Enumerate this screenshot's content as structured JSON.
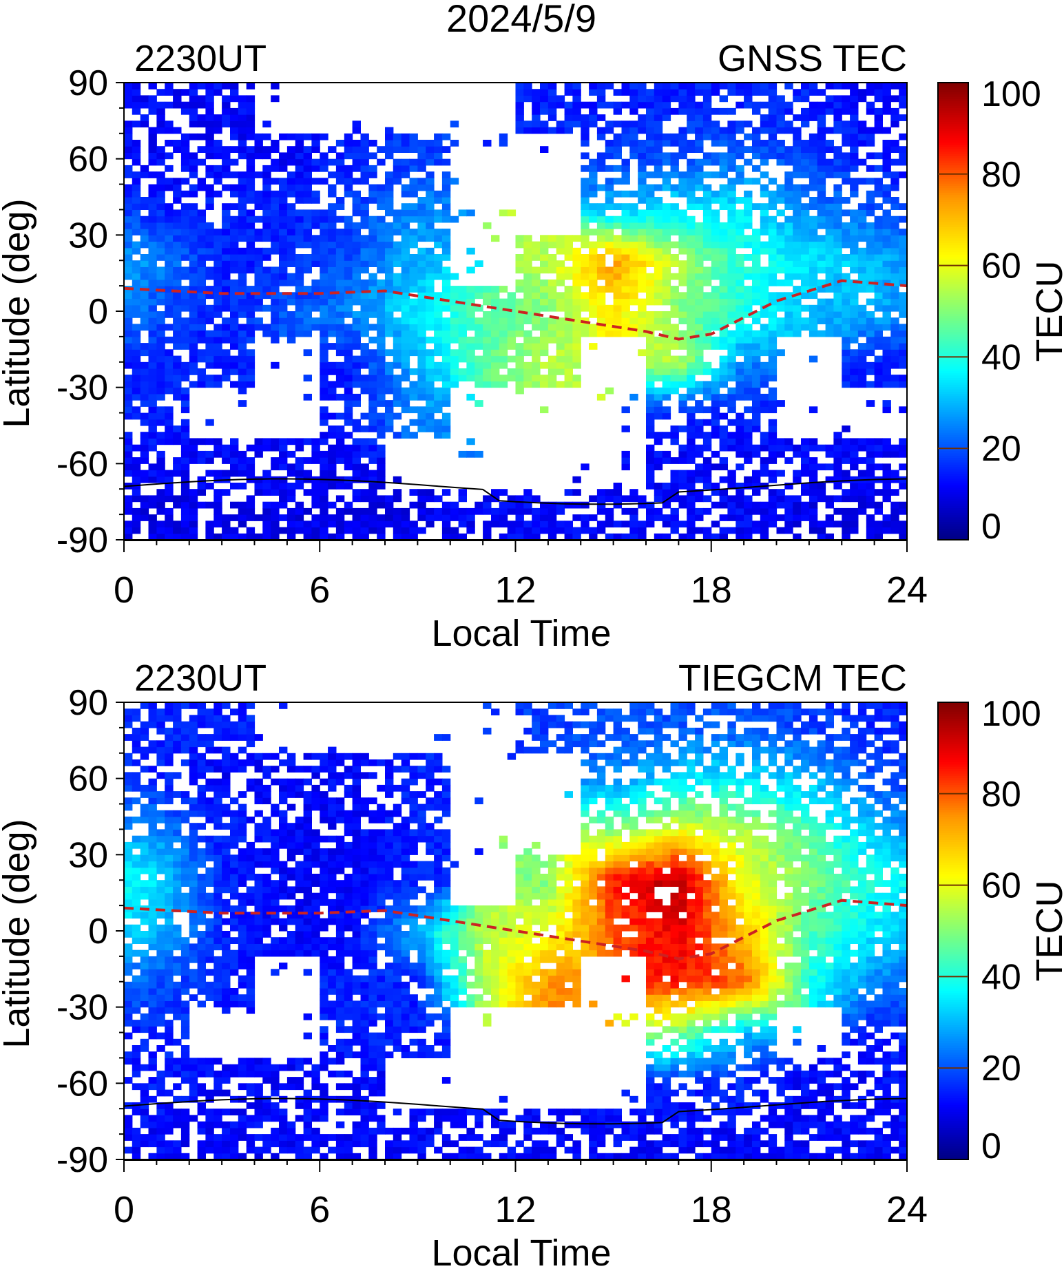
{
  "chart_data": {
    "type": "heatmap",
    "title": "2024/5/9",
    "colormap": "jet",
    "colorbar": {
      "label": "TECU",
      "range": [
        0,
        100
      ],
      "ticks": [
        "0",
        "20",
        "40",
        "60",
        "80",
        "100"
      ]
    },
    "xlabel": "Local Time",
    "ylabel": "Latitude (deg)",
    "xlim": [
      0,
      24
    ],
    "ylim": [
      -90,
      90
    ],
    "xticks": [
      "0",
      "6",
      "12",
      "18",
      "24"
    ],
    "yticks": [
      "90",
      "60",
      "30",
      "0",
      "-30",
      "-60",
      "-90"
    ],
    "grid_lt_centers": [
      1,
      3,
      5,
      7,
      9,
      11,
      13,
      15,
      17,
      19,
      21,
      23
    ],
    "grid_lat_centers": [
      80,
      60,
      40,
      20,
      0,
      -20,
      -40,
      -60,
      -80
    ],
    "dip_equator": {
      "lt": [
        0,
        3,
        6,
        8,
        10,
        12,
        14,
        16,
        17,
        18,
        20,
        22,
        24
      ],
      "lat": [
        9,
        7,
        7,
        8,
        4,
        0,
        -4,
        -8,
        -11,
        -9,
        4,
        12,
        10
      ],
      "color": "#cc2222"
    },
    "panels": [
      {
        "time_label": "2230UT",
        "name": "GNSS TEC",
        "values": [
          [
            12,
            12,
            null,
            null,
            null,
            null,
            15,
            15,
            15,
            15,
            15,
            12
          ],
          [
            12,
            12,
            12,
            15,
            18,
            null,
            null,
            18,
            20,
            22,
            18,
            15
          ],
          [
            15,
            15,
            15,
            18,
            25,
            null,
            null,
            30,
            35,
            35,
            25,
            20
          ],
          [
            25,
            15,
            15,
            20,
            30,
            null,
            55,
            75,
            55,
            40,
            35,
            30
          ],
          [
            20,
            15,
            20,
            25,
            35,
            45,
            50,
            65,
            50,
            40,
            30,
            30
          ],
          [
            15,
            15,
            null,
            15,
            30,
            45,
            55,
            null,
            55,
            25,
            null,
            15
          ],
          [
            15,
            null,
            null,
            15,
            25,
            null,
            null,
            null,
            15,
            15,
            null,
            null
          ],
          [
            12,
            12,
            12,
            12,
            null,
            null,
            null,
            null,
            12,
            12,
            12,
            12
          ],
          [
            10,
            10,
            10,
            10,
            10,
            12,
            12,
            12,
            12,
            12,
            10,
            10
          ]
        ]
      },
      {
        "time_label": "2230UT",
        "name": "TIEGCM TEC",
        "values": [
          [
            15,
            15,
            null,
            null,
            null,
            null,
            18,
            20,
            20,
            20,
            18,
            15
          ],
          [
            15,
            12,
            12,
            12,
            15,
            null,
            null,
            25,
            35,
            35,
            30,
            20
          ],
          [
            25,
            15,
            12,
            12,
            15,
            null,
            null,
            50,
            60,
            55,
            45,
            30
          ],
          [
            35,
            15,
            12,
            12,
            15,
            null,
            50,
            85,
            95,
            60,
            50,
            40
          ],
          [
            30,
            15,
            12,
            12,
            30,
            55,
            60,
            80,
            90,
            70,
            45,
            35
          ],
          [
            20,
            15,
            null,
            15,
            15,
            55,
            75,
            null,
            85,
            80,
            40,
            25
          ],
          [
            15,
            null,
            null,
            15,
            15,
            null,
            null,
            null,
            50,
            30,
            null,
            15
          ],
          [
            15,
            12,
            12,
            12,
            null,
            null,
            null,
            null,
            15,
            15,
            12,
            12
          ],
          [
            12,
            12,
            12,
            12,
            12,
            12,
            12,
            12,
            12,
            12,
            12,
            12
          ]
        ]
      }
    ]
  }
}
